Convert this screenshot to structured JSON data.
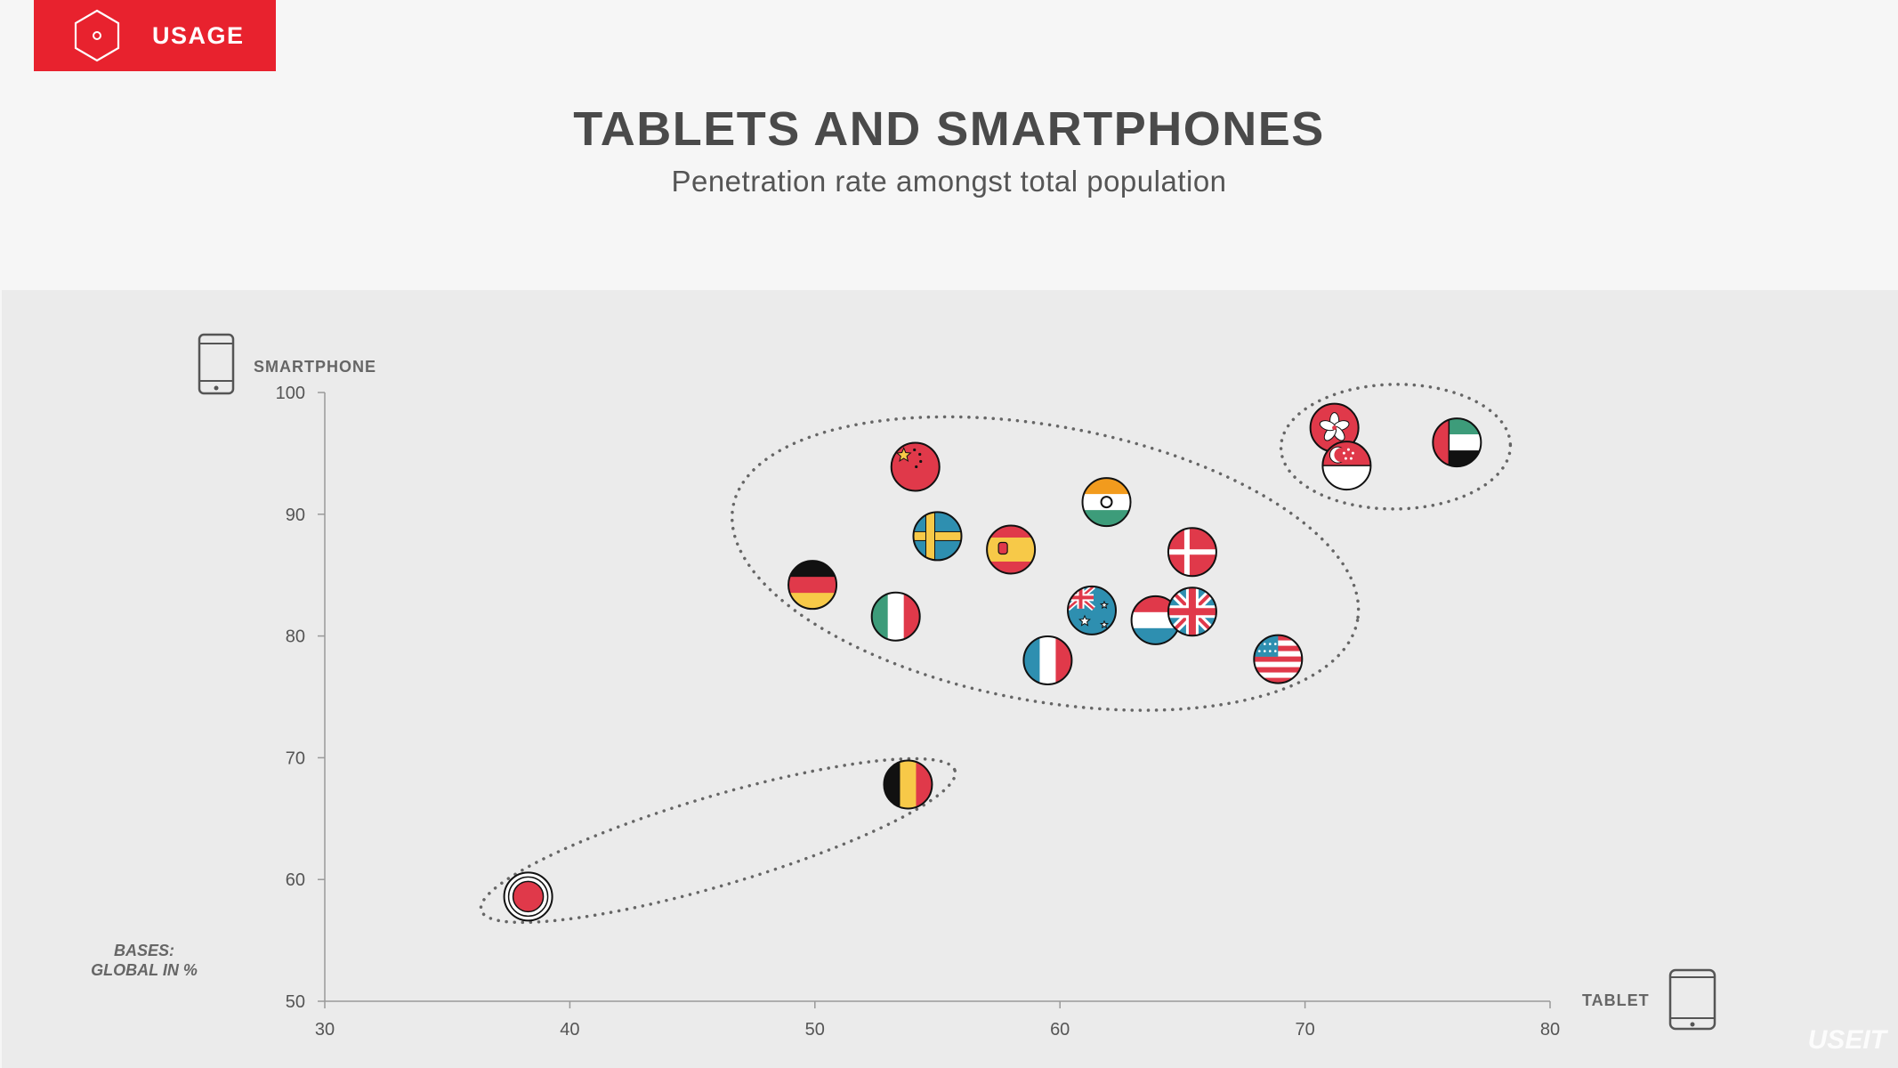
{
  "header": {
    "section_label": "USAGE",
    "section_icon": "hexagon-icon",
    "accent_color": "#e8222e"
  },
  "title": "TABLETS AND SMARTPHONES",
  "subtitle": "Penetration rate amongst total population",
  "footnote": [
    "BASES:",
    "GLOBAL IN %"
  ],
  "chart_data": {
    "type": "scatter",
    "xlabel": "TABLET",
    "ylabel": "SMARTPHONE",
    "xlim": [
      30,
      80
    ],
    "ylim": [
      50,
      100
    ],
    "xticks": [
      30,
      40,
      50,
      60,
      70,
      80
    ],
    "yticks": [
      50,
      60,
      70,
      80,
      90,
      100
    ],
    "x_icon": "tablet-icon",
    "y_icon": "smartphone-icon",
    "points": [
      {
        "flag": "japan",
        "x": 38.3,
        "y": 58.6
      },
      {
        "flag": "belgium",
        "x": 53.8,
        "y": 67.8
      },
      {
        "flag": "germany",
        "x": 49.9,
        "y": 84.2
      },
      {
        "flag": "italy",
        "x": 53.3,
        "y": 81.6
      },
      {
        "flag": "china",
        "x": 54.1,
        "y": 93.9
      },
      {
        "flag": "sweden",
        "x": 55.0,
        "y": 88.2
      },
      {
        "flag": "spain",
        "x": 58.0,
        "y": 87.1
      },
      {
        "flag": "france",
        "x": 59.5,
        "y": 78.0
      },
      {
        "flag": "india",
        "x": 61.9,
        "y": 91.0
      },
      {
        "flag": "australia",
        "x": 61.3,
        "y": 82.1
      },
      {
        "flag": "netherlands",
        "x": 63.9,
        "y": 81.3
      },
      {
        "flag": "denmark",
        "x": 65.4,
        "y": 86.9
      },
      {
        "flag": "united-kingdom",
        "x": 65.4,
        "y": 82.0
      },
      {
        "flag": "usa",
        "x": 68.9,
        "y": 78.1
      },
      {
        "flag": "hong-kong",
        "x": 71.2,
        "y": 97.1
      },
      {
        "flag": "singapore",
        "x": 71.7,
        "y": 94.0
      },
      {
        "flag": "uae",
        "x": 76.2,
        "y": 95.9
      }
    ],
    "clusters": [
      {
        "name": "",
        "members": [
          "japan",
          "belgium"
        ]
      },
      {
        "name": "",
        "members": [
          "germany",
          "italy",
          "china",
          "sweden",
          "spain",
          "france",
          "india",
          "australia",
          "netherlands",
          "denmark",
          "united-kingdom",
          "usa"
        ]
      },
      {
        "name": "",
        "members": [
          "hong-kong",
          "singapore",
          "uae"
        ]
      }
    ],
    "grid": false
  },
  "watermark": "USEIT"
}
